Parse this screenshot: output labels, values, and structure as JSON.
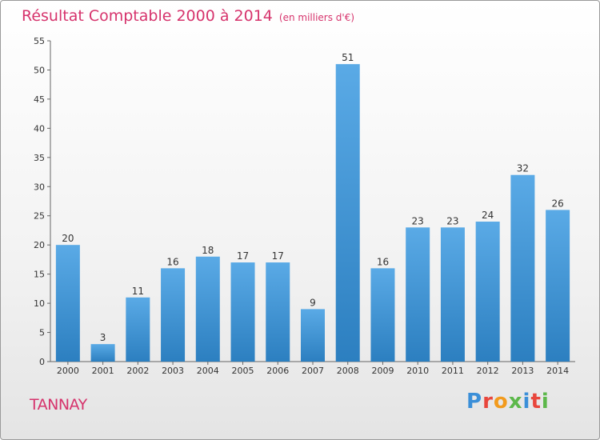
{
  "header": {
    "title": "Résultat Comptable 2000 à 2014",
    "subtitle": "(en milliers d'€)"
  },
  "footer": {
    "commune": "TANNAY",
    "logo": "Proxiti"
  },
  "colors": {
    "accent": "#d6336c",
    "bar_top": "#5aaae6",
    "bar_bottom": "#2c7fc0"
  },
  "chart_data": {
    "type": "bar",
    "title": "Résultat Comptable 2000 à 2014",
    "subtitle": "(en milliers d'€)",
    "xlabel": "",
    "ylabel": "",
    "categories": [
      "2000",
      "2001",
      "2002",
      "2003",
      "2004",
      "2005",
      "2006",
      "2007",
      "2008",
      "2009",
      "2010",
      "2011",
      "2012",
      "2013",
      "2014"
    ],
    "values": [
      20,
      3,
      11,
      16,
      18,
      17,
      17,
      9,
      51,
      16,
      23,
      23,
      24,
      32,
      26
    ],
    "ylim": [
      0,
      55
    ],
    "yticks": [
      0,
      5,
      10,
      15,
      20,
      25,
      30,
      35,
      40,
      45,
      50,
      55
    ],
    "grid": false
  }
}
